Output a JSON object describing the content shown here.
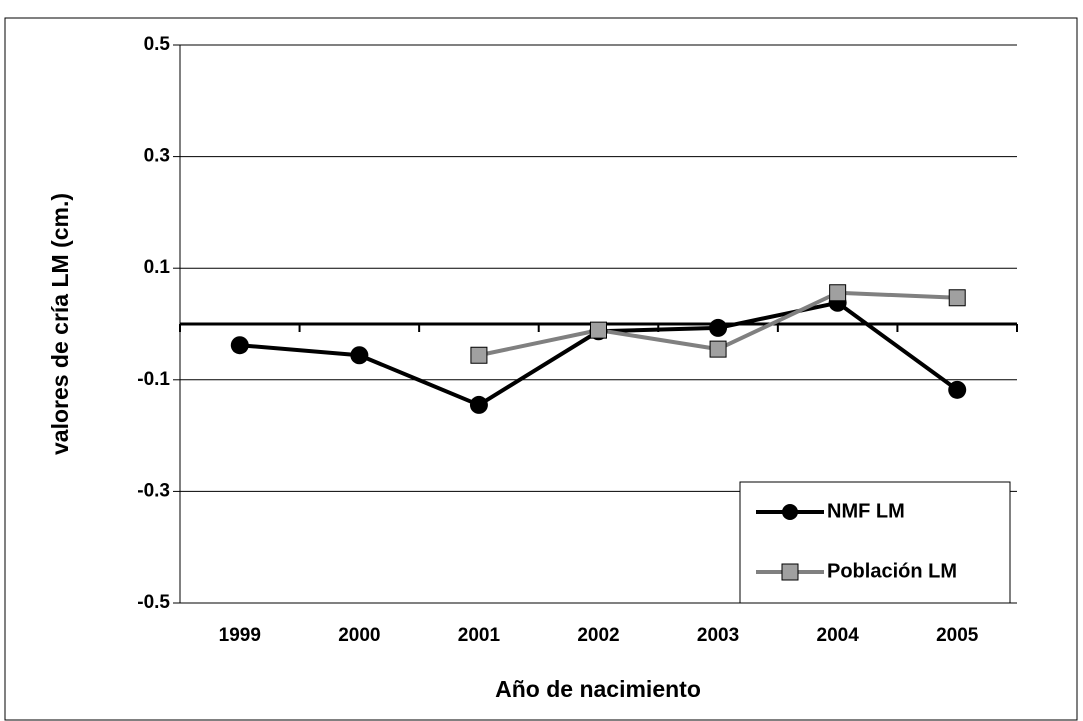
{
  "chart_data": {
    "type": "line",
    "categories": [
      "1999",
      "2000",
      "2001",
      "2002",
      "2003",
      "2004",
      "2005"
    ],
    "series": [
      {
        "name": "NMF LM",
        "color": "#000000",
        "marker": "circle",
        "values": [
          -0.038,
          -0.056,
          -0.145,
          -0.013,
          -0.007,
          0.038,
          -0.118
        ]
      },
      {
        "name": "Población LM",
        "color": "#808080",
        "marker": "square",
        "values": [
          null,
          null,
          -0.056,
          -0.011,
          -0.045,
          0.056,
          0.047
        ]
      }
    ],
    "xlabel": "Año de nacimiento",
    "ylabel": "valores de cría LM (cm.)",
    "ylim": [
      -0.5,
      0.5
    ],
    "yticks": [
      -0.5,
      -0.3,
      -0.1,
      0.1,
      0.3,
      0.5
    ],
    "grid": true,
    "legend": "lower right"
  }
}
